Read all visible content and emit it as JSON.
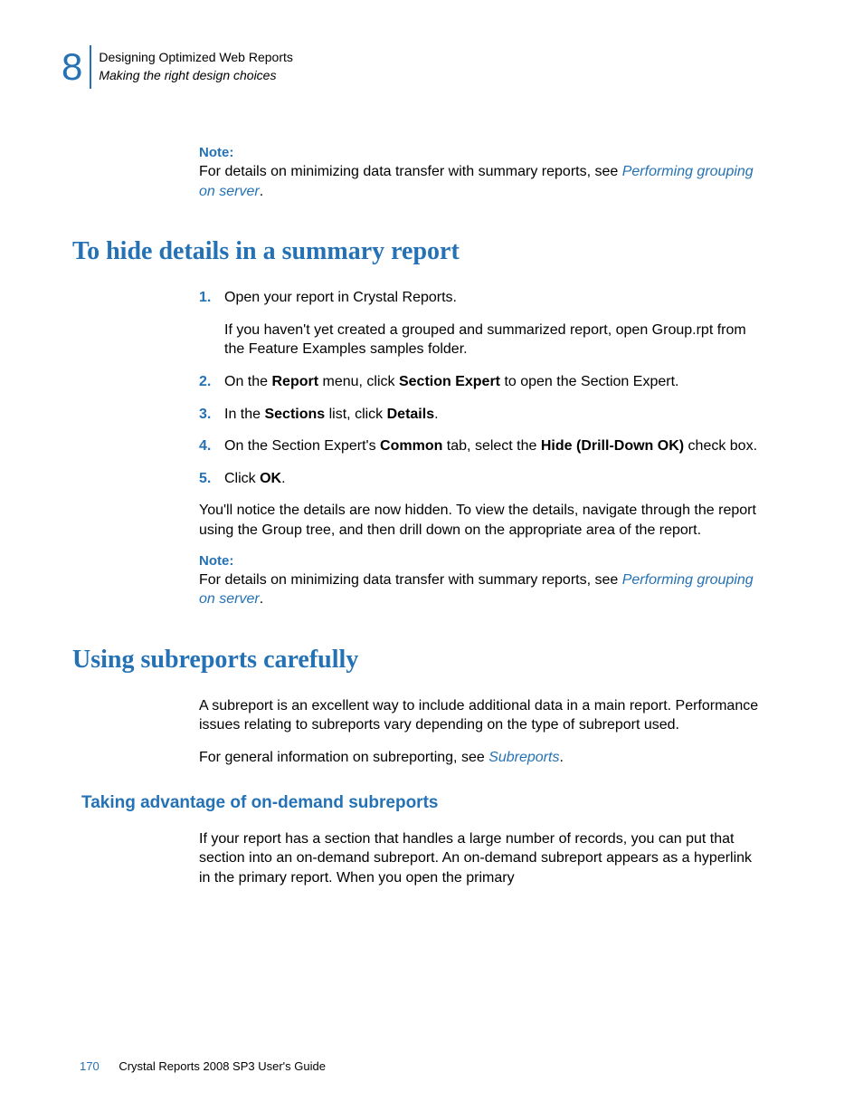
{
  "colors": {
    "accent": "#2472b5",
    "text": "#000000",
    "background": "#ffffff"
  },
  "header": {
    "chapter_number": "8",
    "line1": "Designing Optimized Web Reports",
    "line2": "Making the right design choices"
  },
  "note1": {
    "label": "Note:",
    "text_before": "For details on minimizing data transfer with summary reports, see ",
    "link": "Performing grouping on server",
    "text_after": "."
  },
  "section1": {
    "heading": "To hide details in a summary report",
    "steps": [
      {
        "num": "1.",
        "text": "Open your report in Crystal Reports.",
        "subtext": "If you haven't yet created a grouped and summarized report, open Group.rpt from the Feature Examples samples folder."
      },
      {
        "num": "2.",
        "segments": [
          {
            "t": "On the ",
            "b": false
          },
          {
            "t": "Report",
            "b": true
          },
          {
            "t": " menu, click ",
            "b": false
          },
          {
            "t": "Section Expert",
            "b": true
          },
          {
            "t": " to open the Section Expert.",
            "b": false
          }
        ]
      },
      {
        "num": "3.",
        "segments": [
          {
            "t": "In the ",
            "b": false
          },
          {
            "t": "Sections",
            "b": true
          },
          {
            "t": " list, click ",
            "b": false
          },
          {
            "t": "Details",
            "b": true
          },
          {
            "t": ".",
            "b": false
          }
        ]
      },
      {
        "num": "4.",
        "segments": [
          {
            "t": "On the Section Expert's ",
            "b": false
          },
          {
            "t": "Common",
            "b": true
          },
          {
            "t": " tab, select the ",
            "b": false
          },
          {
            "t": "Hide (Drill-Down OK)",
            "b": true
          },
          {
            "t": " check box.",
            "b": false
          }
        ]
      },
      {
        "num": "5.",
        "segments": [
          {
            "t": "Click ",
            "b": false
          },
          {
            "t": "OK",
            "b": true
          },
          {
            "t": ".",
            "b": false
          }
        ]
      }
    ],
    "after_para": "You'll notice the details are now hidden. To view the details, navigate through the report using the Group tree, and then drill down on the appropriate area of the report."
  },
  "note2": {
    "label": "Note:",
    "text_before": "For details on minimizing data transfer with summary reports, see ",
    "link": "Performing grouping on server",
    "text_after": "."
  },
  "section2": {
    "heading": "Using subreports carefully",
    "para1": "A subreport is an excellent way to include additional data in a main report. Performance issues relating to subreports vary depending on the type of subreport used.",
    "para2_before": "For general information on subreporting, see ",
    "para2_link": "Subreports",
    "para2_after": ".",
    "sub_heading": "Taking advantage of on-demand subreports",
    "sub_para": "If your report has a section that handles a large number of records, you can put that section into an on-demand subreport. An on-demand subreport appears as a hyperlink in the primary report. When you open the primary"
  },
  "footer": {
    "page_number": "170",
    "title": "Crystal Reports 2008 SP3 User's Guide"
  }
}
